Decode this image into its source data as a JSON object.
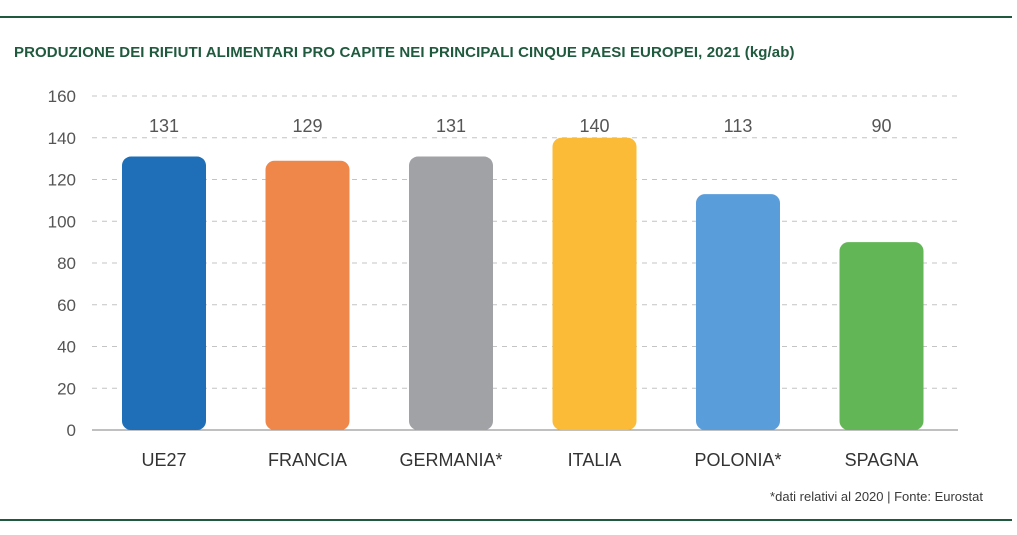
{
  "chart_data": {
    "type": "bar",
    "title": "PRODUZIONE DEI RIFIUTI ALIMENTARI PRO CAPITE NEI PRINCIPALI CINQUE PAESI EUROPEI, 2021 (kg/ab)",
    "categories": [
      "UE27",
      "FRANCIA",
      "GERMANIA*",
      "ITALIA",
      "POLONIA*",
      "SPAGNA"
    ],
    "values": [
      131,
      129,
      131,
      140,
      113,
      90
    ],
    "value_labels": [
      "131",
      "129",
      "131",
      "140",
      "113",
      "90"
    ],
    "colors": [
      "#1e6fb8",
      "#f0874a",
      "#a0a2a6",
      "#fbbb36",
      "#5a9ddb",
      "#63b656"
    ],
    "ylim": [
      0,
      160
    ],
    "yticks": [
      0,
      20,
      40,
      60,
      80,
      100,
      120,
      140,
      160
    ],
    "grid": true,
    "xlabel": "",
    "ylabel": ""
  },
  "footnote": "*dati relativi al 2020 | Fonte: Eurostat"
}
